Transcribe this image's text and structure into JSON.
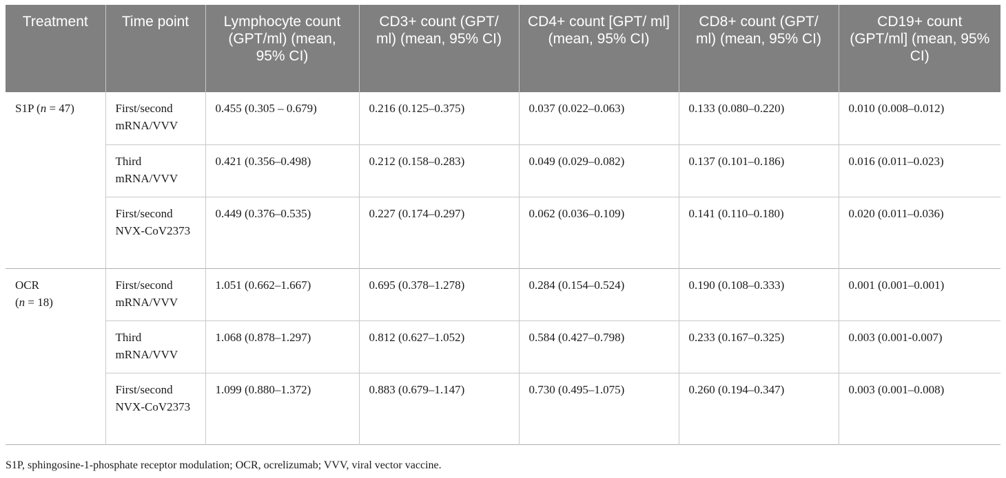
{
  "table": {
    "headers": [
      "Treatment",
      "Time point",
      "Lymphocyte count (GPT/ml) (mean, 95% CI)",
      "CD3+ count (GPT/ ml) (mean, 95% CI)",
      "CD4+ count [GPT/ ml] (mean, 95% CI)",
      "CD8+ count (GPT/ ml) (mean, 95% CI)",
      "CD19+ count (GPT/ml] (mean, 95% CI)"
    ],
    "groups": [
      {
        "treatment_name": "S1P",
        "treatment_n": "(n = 47)",
        "rows": [
          {
            "time_point": "First/second mRNA/VVV",
            "lymphocyte": "0.455 (0.305 – 0.679)",
            "cd3": "0.216 (0.125–0.375)",
            "cd4": "0.037 (0.022–0.063)",
            "cd8": "0.133 (0.080–0.220)",
            "cd19": "0.010 (0.008–0.012)"
          },
          {
            "time_point": "Third mRNA/VVV",
            "lymphocyte": "0.421 (0.356–0.498)",
            "cd3": "0.212 (0.158–0.283)",
            "cd4": "0.049 (0.029–0.082)",
            "cd8": "0.137 (0.101–0.186)",
            "cd19": "0.016 (0.011–0.023)"
          },
          {
            "time_point": "First/second NVX-CoV2373",
            "lymphocyte": "0.449 (0.376–0.535)",
            "cd3": "0.227 (0.174–0.297)",
            "cd4": "0.062 (0.036–0.109)",
            "cd8": "0.141 (0.110–0.180)",
            "cd19": "0.020 (0.011–0.036)"
          }
        ]
      },
      {
        "treatment_name": "OCR",
        "treatment_n": "(n = 18)",
        "rows": [
          {
            "time_point": "First/second mRNA/VVV",
            "lymphocyte": "1.051 (0.662–1.667)",
            "cd3": "0.695 (0.378–1.278)",
            "cd4": "0.284 (0.154–0.524)",
            "cd8": "0.190 (0.108–0.333)",
            "cd19": "0.001 (0.001–0.001)"
          },
          {
            "time_point": "Third mRNA/VVV",
            "lymphocyte": "1.068 (0.878–1.297)",
            "cd3": "0.812 (0.627–1.052)",
            "cd4": "0.584 (0.427–0.798)",
            "cd8": "0.233 (0.167–0.325)",
            "cd19": "0.003 (0.001-0.007)"
          },
          {
            "time_point": "First/second NVX-CoV2373",
            "lymphocyte": "1.099 (0.880–1.372)",
            "cd3": "0.883 (0.679–1.147)",
            "cd4": "0.730 (0.495–1.075)",
            "cd8": "0.260 (0.194–0.347)",
            "cd19": "0.003 (0.001–0.008)"
          }
        ]
      }
    ]
  },
  "footnote": "S1P, sphingosine-1-phosphate receptor modulation; OCR, ocrelizumab; VVV, viral vector vaccine.",
  "colors": {
    "header_background": "#808080",
    "header_text": "#ffffff",
    "rule": "#c8c8c8"
  }
}
